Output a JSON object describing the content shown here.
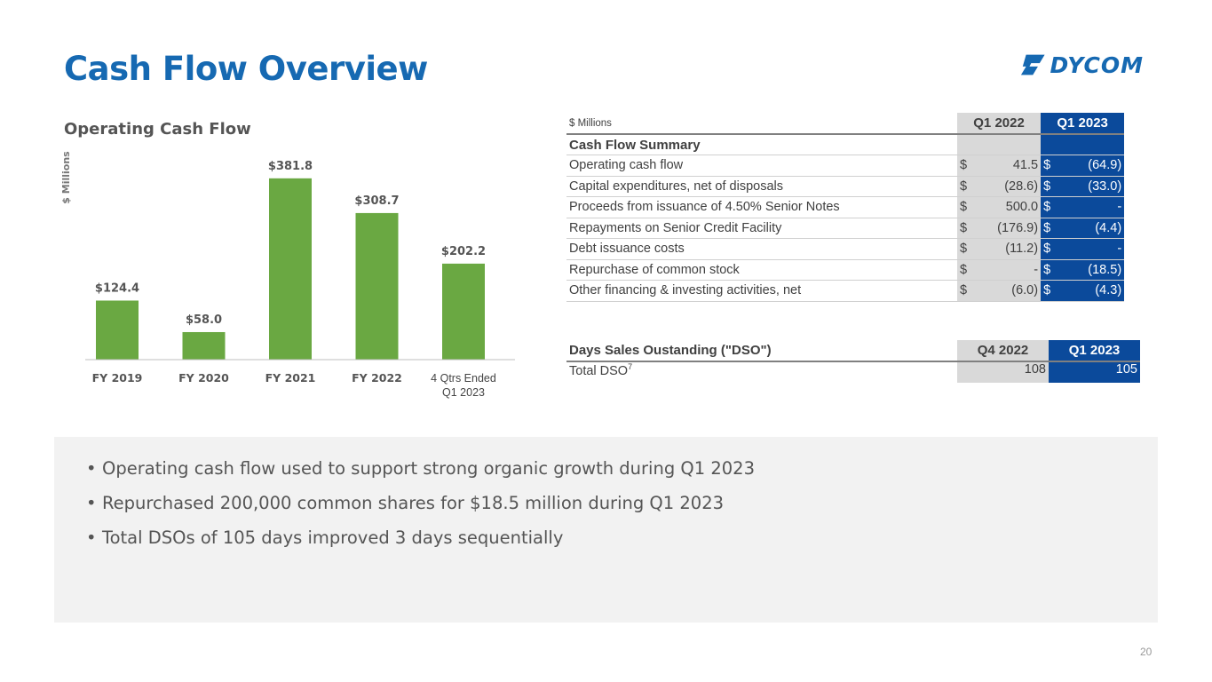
{
  "title": "Cash Flow Overview",
  "logo": {
    "text": "DYCOM"
  },
  "page_number": "20",
  "chart_data": {
    "type": "bar",
    "title": "Operating Cash Flow",
    "ylabel": "$ Millions",
    "xlabel": "",
    "categories": [
      "FY 2019",
      "FY 2020",
      "FY 2021",
      "FY 2022",
      "4 Qtrs Ended Q1 2023"
    ],
    "category_lines": [
      [
        "FY 2019"
      ],
      [
        "FY 2020"
      ],
      [
        "FY 2021"
      ],
      [
        "FY 2022"
      ],
      [
        "4 Qtrs Ended",
        "Q1 2023"
      ]
    ],
    "values": [
      124.4,
      58.0,
      381.8,
      308.7,
      202.2
    ],
    "data_labels": [
      "$124.4",
      "$58.0",
      "$381.8",
      "$308.7",
      "$202.2"
    ],
    "ylim": [
      0,
      400
    ],
    "color": "#6AA842"
  },
  "cashflow_table": {
    "unit_label": "$ Millions",
    "col1": "Q1 2022",
    "col2": "Q1 2023",
    "section": "Cash Flow Summary",
    "rows": [
      {
        "label": "Operating cash flow",
        "d1": "$",
        "v1": "41.5",
        "d2": "$",
        "v2": "(64.9)"
      },
      {
        "label": "Capital expenditures, net of disposals",
        "d1": "$",
        "v1": "(28.6)",
        "d2": "$",
        "v2": "(33.0)"
      },
      {
        "label": "Proceeds from issuance of 4.50% Senior Notes",
        "d1": "$",
        "v1": "500.0",
        "d2": "$",
        "v2": "-"
      },
      {
        "label": "Repayments on Senior Credit Facility",
        "d1": "$",
        "v1": "(176.9)",
        "d2": "$",
        "v2": "(4.4)"
      },
      {
        "label": "Debt issuance costs",
        "d1": "$",
        "v1": "(11.2)",
        "d2": "$",
        "v2": "-"
      },
      {
        "label": "Repurchase of common stock",
        "d1": "$",
        "v1": "-",
        "d2": "$",
        "v2": "(18.5)"
      },
      {
        "label": "Other financing & investing activities, net",
        "d1": "$",
        "v1": "(6.0)",
        "d2": "$",
        "v2": "(4.3)"
      }
    ]
  },
  "dso_table": {
    "title": "Days Sales Oustanding (\"DSO\")",
    "col1": "Q4 2022",
    "col2": "Q1 2023",
    "row_label": "Total DSO",
    "row_sup": "7",
    "v1": "108",
    "v2": "105"
  },
  "bullets": [
    "Operating cash flow used to support strong organic growth during Q1 2023",
    "Repurchased 200,000 common shares for $18.5 million during Q1 2023",
    "Total DSOs of 105 days improved 3 days sequentially"
  ],
  "colors": {
    "title": "#1669B2",
    "header_blue": "#0B4A9B",
    "header_gray": "#d9d9d9",
    "bar": "#6AA842"
  }
}
